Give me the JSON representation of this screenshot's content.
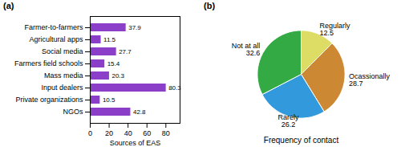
{
  "chart_data": [
    {
      "type": "bar",
      "title": "(a)",
      "orientation": "horizontal",
      "categories": [
        "Farmer-to-farmers",
        "Agricultural apps",
        "Social media",
        "Farmers field schools",
        "Mass media",
        "Input dealers",
        "Private organizations",
        "NGOs"
      ],
      "values": [
        37.9,
        11.5,
        27.7,
        15.4,
        20.3,
        80.3,
        10.5,
        42.8
      ],
      "color": "#8B3FC8",
      "xlabel": "Sources of EAS",
      "xlim": [
        0,
        95
      ],
      "xticks": [
        0,
        20,
        40,
        60,
        80
      ],
      "data_labels": true
    },
    {
      "type": "pie",
      "title": "(b)",
      "xlabel": "Frequency of contact",
      "categories": [
        "Regularly",
        "Ocassionally",
        "Rarely",
        "Not at all"
      ],
      "values": [
        12.5,
        28.7,
        26.2,
        32.6
      ],
      "colors": [
        "#DDDD66",
        "#CC8833",
        "#3399DD",
        "#33AA44"
      ],
      "data_labels": true
    }
  ]
}
